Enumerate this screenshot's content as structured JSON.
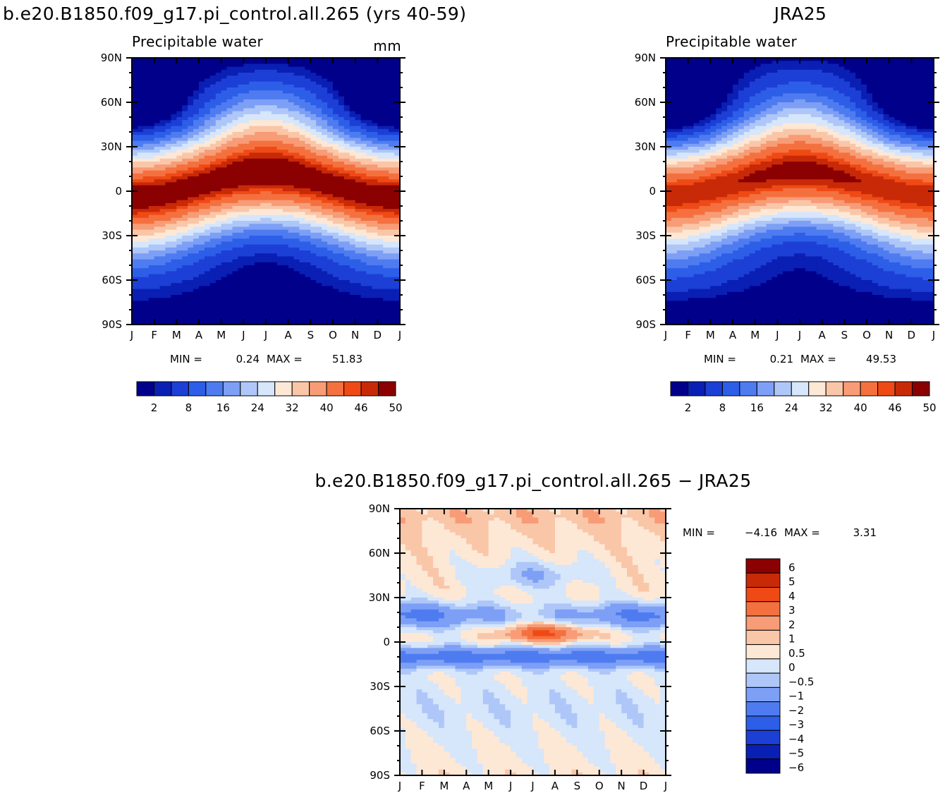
{
  "chart_data": [
    {
      "type": "heatmap",
      "id": "model",
      "title": "b.e20.B1850.f09_g17.pi_control.all.265 (yrs 40-59)",
      "subtitle": "Precipitable water",
      "units": "mm",
      "x_ticks": [
        "J",
        "F",
        "M",
        "A",
        "M",
        "J",
        "J",
        "A",
        "S",
        "O",
        "N",
        "D",
        "J"
      ],
      "y_ticks": [
        "90N",
        "60N",
        "30N",
        "0",
        "30S",
        "60S",
        "90S"
      ],
      "min_label": "MIN =",
      "min_value": "0.24",
      "max_label": "MAX =",
      "max_value": "51.83",
      "levels": [
        "2",
        "8",
        "16",
        "24",
        "32",
        "40",
        "46",
        "50"
      ],
      "itcz_peak": 51.83
    },
    {
      "type": "heatmap",
      "id": "obs",
      "title": "JRA25",
      "subtitle": "Precipitable water",
      "x_ticks": [
        "J",
        "F",
        "M",
        "A",
        "M",
        "J",
        "J",
        "A",
        "S",
        "O",
        "N",
        "D",
        "J"
      ],
      "y_ticks": [
        "90N",
        "60N",
        "30N",
        "0",
        "30S",
        "60S",
        "90S"
      ],
      "min_label": "MIN =",
      "min_value": "0.21",
      "max_label": "MAX =",
      "max_value": "49.53",
      "levels": [
        "2",
        "8",
        "16",
        "24",
        "32",
        "40",
        "46",
        "50"
      ],
      "itcz_peak": 49.53
    },
    {
      "type": "heatmap",
      "id": "diff",
      "title": "b.e20.B1850.f09_g17.pi_control.all.265 − JRA25",
      "x_ticks": [
        "J",
        "F",
        "M",
        "A",
        "M",
        "J",
        "J",
        "A",
        "S",
        "O",
        "N",
        "D",
        "J"
      ],
      "y_ticks": [
        "90N",
        "60N",
        "30N",
        "0",
        "30S",
        "60S",
        "90S"
      ],
      "min_label": "MIN =",
      "min_value": "−4.16",
      "max_label": "MAX =",
      "max_value": "3.31",
      "levels": [
        "6",
        "5",
        "4",
        "3",
        "2",
        "1",
        "0.5",
        "0",
        "−0.5",
        "−1",
        "−2",
        "−3",
        "−4",
        "−5",
        "−6"
      ]
    }
  ],
  "colors": {
    "full": [
      "#00008b",
      "#0a1fb3",
      "#1c3fd6",
      "#2d5ee8",
      "#4e7cf0",
      "#7d9ff5",
      "#aec7f8",
      "#d6e6fb",
      "#fde8d6",
      "#fac6a8",
      "#f79c76",
      "#f4713f",
      "#ef4a16",
      "#c82a08",
      "#8b0000"
    ],
    "diff": [
      "#00008b",
      "#0a1fb3",
      "#1c3fd6",
      "#2d5ee8",
      "#4e7cf0",
      "#7d9ff5",
      "#aec7f8",
      "#d6e6fb",
      "#fde8d6",
      "#fac6a8",
      "#f79c76",
      "#f4713f",
      "#ef4a16",
      "#c82a08",
      "#8b0000"
    ]
  }
}
